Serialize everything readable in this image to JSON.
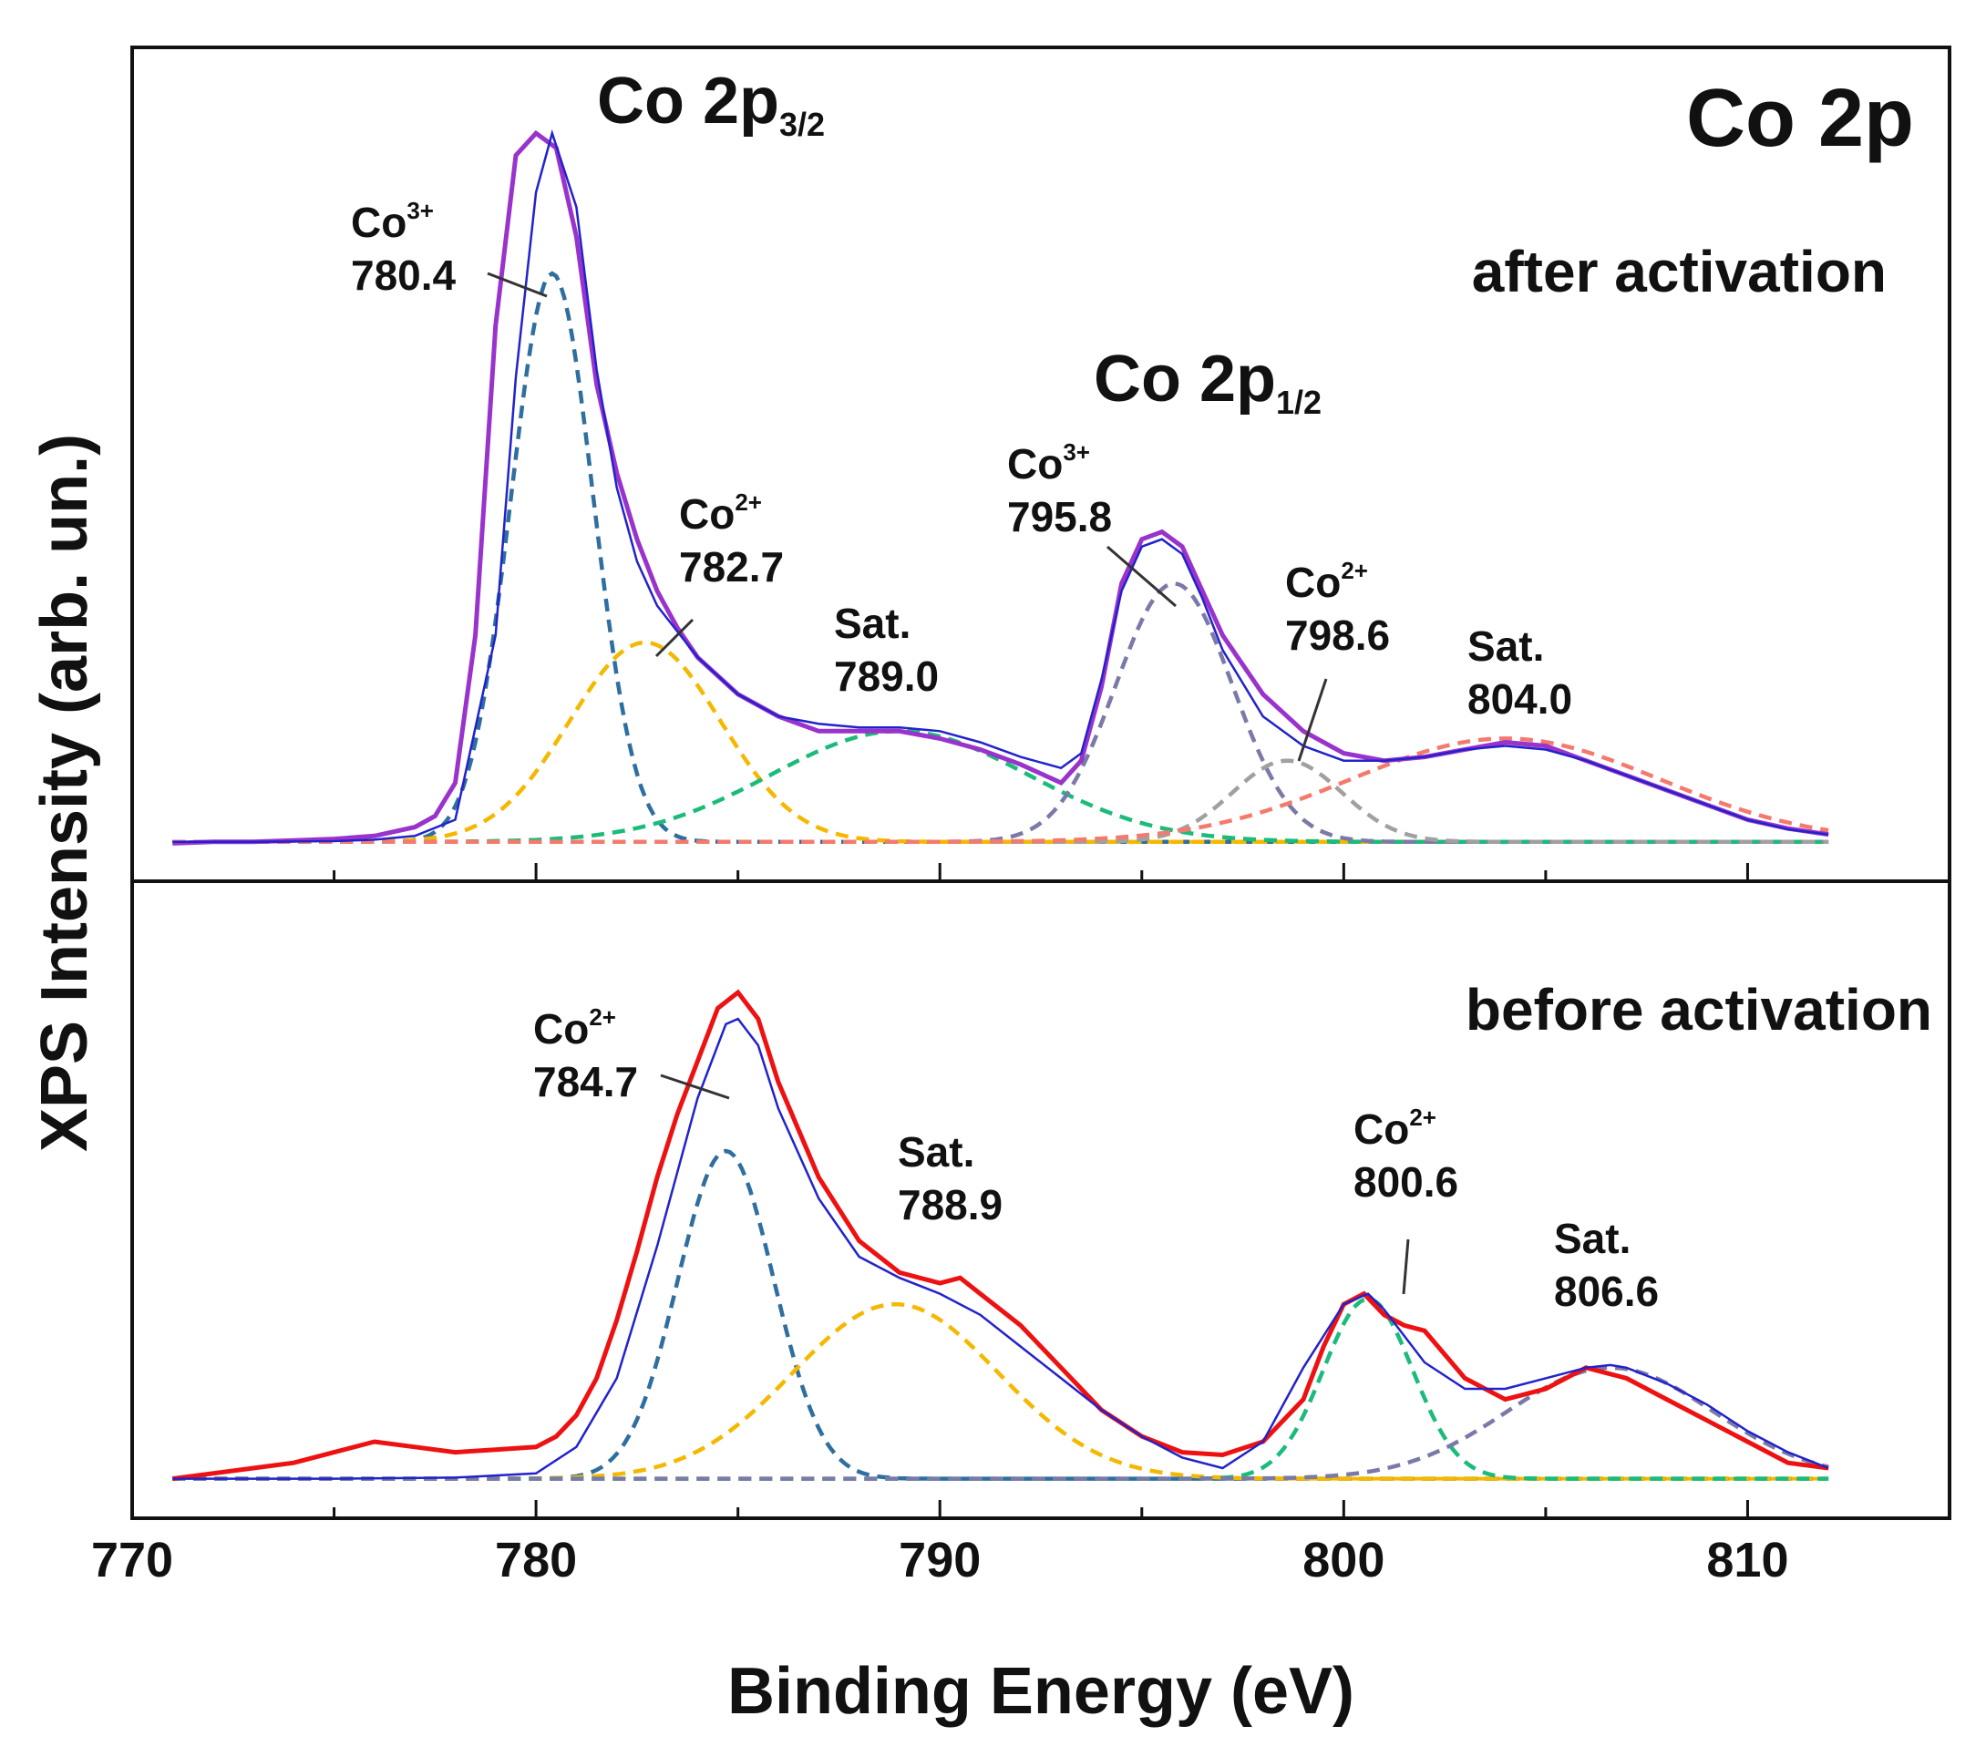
{
  "chart_data": {
    "type": "line",
    "title": "Co 2p",
    "xlabel": "Binding Energy (eV)",
    "ylabel": "XPS Intensity (arb. un.)",
    "xlim": [
      770,
      815
    ],
    "x_ticks": [
      770,
      780,
      790,
      800,
      810
    ],
    "y_ticks": "none",
    "grid": false,
    "legend": "none",
    "colors": {
      "after_exp": "#9933cc",
      "before_exp": "#ee1111",
      "envelope": "#2222cc",
      "co3_main": "#2f6f9f",
      "co2_main": "#f5b800",
      "sat_a": "#1bbb7a",
      "co3_half": "#7a7aa8",
      "co2_half": "#a0a0a0",
      "sat_b": "#f47a6e",
      "annotation_line": "#333333"
    },
    "panels": [
      {
        "id": "after",
        "label": "after activation",
        "group_labels": [
          {
            "main": "Co 2p",
            "sub": "3/2",
            "x": 780.5
          },
          {
            "main": "Co 2p",
            "sub": "1/2",
            "x": 794.0
          }
        ],
        "ylim": [
          0,
          1.0
        ],
        "baseline": 0.02,
        "experimental": {
          "x": [
            771,
            772,
            773,
            774,
            775,
            776,
            777,
            777.5,
            778,
            778.5,
            779,
            779.5,
            780,
            780.5,
            781,
            781.5,
            782,
            782.5,
            783,
            783.5,
            784,
            785,
            786,
            787,
            788,
            789,
            790,
            791,
            792,
            793,
            793.5,
            794,
            794.5,
            795,
            795.5,
            796,
            796.5,
            797,
            798,
            799,
            800,
            801,
            802,
            803,
            804,
            805,
            806,
            807,
            808,
            809,
            810,
            811,
            812
          ],
          "y": [
            0.018,
            0.02,
            0.02,
            0.022,
            0.024,
            0.028,
            0.04,
            0.055,
            0.1,
            0.3,
            0.72,
            0.95,
            0.98,
            0.96,
            0.84,
            0.64,
            0.52,
            0.43,
            0.36,
            0.31,
            0.27,
            0.22,
            0.19,
            0.17,
            0.17,
            0.17,
            0.16,
            0.145,
            0.125,
            0.1,
            0.13,
            0.23,
            0.37,
            0.43,
            0.44,
            0.42,
            0.36,
            0.3,
            0.22,
            0.17,
            0.14,
            0.13,
            0.135,
            0.145,
            0.155,
            0.15,
            0.13,
            0.11,
            0.09,
            0.07,
            0.05,
            0.038,
            0.03
          ]
        },
        "envelope": {
          "x": [
            771,
            773,
            775,
            776,
            777,
            778,
            779,
            779.5,
            780,
            780.4,
            781,
            781.5,
            782,
            782.5,
            783,
            784,
            785,
            786,
            787,
            788,
            789,
            790,
            791,
            792,
            793,
            793.5,
            794,
            794.5,
            795,
            795.5,
            796,
            796.5,
            797,
            798,
            799,
            800,
            801,
            802,
            803,
            804,
            805,
            806,
            807,
            808,
            809,
            810,
            811,
            812
          ],
          "y": [
            0.02,
            0.02,
            0.021,
            0.023,
            0.028,
            0.05,
            0.3,
            0.65,
            0.9,
            0.98,
            0.88,
            0.66,
            0.5,
            0.4,
            0.34,
            0.27,
            0.22,
            0.19,
            0.18,
            0.175,
            0.175,
            0.17,
            0.155,
            0.135,
            0.12,
            0.14,
            0.24,
            0.36,
            0.42,
            0.43,
            0.41,
            0.35,
            0.28,
            0.19,
            0.15,
            0.13,
            0.13,
            0.135,
            0.145,
            0.15,
            0.145,
            0.13,
            0.11,
            0.09,
            0.07,
            0.05,
            0.037,
            0.03
          ]
        },
        "components": [
          {
            "name": "Co3+",
            "center": 780.4,
            "fwhm": 2.4,
            "height": 0.77,
            "color_key": "co3_main"
          },
          {
            "name": "Co2+",
            "center": 782.7,
            "fwhm": 4.4,
            "height": 0.27,
            "color_key": "co2_main"
          },
          {
            "name": "Sat.",
            "center": 789.0,
            "fwhm": 7.5,
            "height": 0.15,
            "color_key": "sat_a"
          },
          {
            "name": "Co3+",
            "center": 795.8,
            "fwhm": 3.4,
            "height": 0.35,
            "color_key": "co3_half"
          },
          {
            "name": "Co2+",
            "center": 798.6,
            "fwhm": 3.2,
            "height": 0.11,
            "color_key": "co2_half"
          },
          {
            "name": "Sat.",
            "center": 804.0,
            "fwhm": 9.0,
            "height": 0.14,
            "color_key": "sat_b"
          }
        ],
        "annotations": [
          {
            "species": "Co",
            "charge": "3+",
            "value": "780.4",
            "x": 780.4
          },
          {
            "species": "Co",
            "charge": "2+",
            "value": "782.7",
            "x": 782.7
          },
          {
            "label": "Sat.",
            "value": "789.0",
            "x": 789.0
          },
          {
            "species": "Co",
            "charge": "3+",
            "value": "795.8",
            "x": 795.8
          },
          {
            "species": "Co",
            "charge": "2+",
            "value": "798.6",
            "x": 798.6
          },
          {
            "label": "Sat.",
            "value": "804.0",
            "x": 804.0
          }
        ]
      },
      {
        "id": "before",
        "label": "before activation",
        "ylim": [
          0,
          1.0
        ],
        "baseline": 0.03,
        "experimental": {
          "x": [
            771,
            772,
            773,
            774,
            775,
            776,
            777,
            778,
            779,
            780,
            780.5,
            781,
            781.5,
            782,
            782.5,
            783,
            783.5,
            784,
            784.5,
            785,
            785.5,
            786,
            787,
            788,
            789,
            790,
            790.5,
            791,
            792,
            793,
            794,
            795,
            796,
            797,
            798,
            799,
            799.5,
            800,
            800.5,
            801,
            801.5,
            802,
            803,
            804,
            805,
            806,
            807,
            808,
            809,
            810,
            811,
            812
          ],
          "y": [
            0.03,
            0.04,
            0.05,
            0.06,
            0.08,
            0.1,
            0.09,
            0.08,
            0.085,
            0.09,
            0.11,
            0.15,
            0.22,
            0.33,
            0.46,
            0.6,
            0.72,
            0.82,
            0.92,
            0.95,
            0.9,
            0.78,
            0.6,
            0.48,
            0.42,
            0.4,
            0.41,
            0.38,
            0.32,
            0.24,
            0.16,
            0.11,
            0.08,
            0.075,
            0.1,
            0.18,
            0.28,
            0.36,
            0.38,
            0.34,
            0.32,
            0.31,
            0.22,
            0.18,
            0.2,
            0.24,
            0.22,
            0.18,
            0.14,
            0.1,
            0.06,
            0.05
          ]
        },
        "envelope": {
          "x": [
            771,
            775,
            778,
            780,
            781,
            782,
            783,
            784,
            784.7,
            785,
            785.5,
            786,
            787,
            788,
            789,
            790,
            791,
            792,
            793,
            794,
            795,
            796,
            797,
            798,
            799,
            800,
            800.6,
            801,
            802,
            803,
            804,
            805,
            806,
            806.6,
            807,
            808,
            809,
            810,
            811,
            812
          ],
          "y": [
            0.03,
            0.03,
            0.032,
            0.04,
            0.09,
            0.22,
            0.47,
            0.75,
            0.89,
            0.9,
            0.85,
            0.73,
            0.56,
            0.45,
            0.41,
            0.38,
            0.34,
            0.28,
            0.22,
            0.16,
            0.11,
            0.07,
            0.05,
            0.1,
            0.24,
            0.36,
            0.38,
            0.35,
            0.25,
            0.2,
            0.2,
            0.22,
            0.24,
            0.245,
            0.24,
            0.21,
            0.17,
            0.12,
            0.08,
            0.05
          ]
        },
        "components": [
          {
            "name": "Co2+",
            "center": 784.7,
            "fwhm": 2.8,
            "height": 0.62,
            "color_key": "co3_main"
          },
          {
            "name": "Sat.",
            "center": 788.9,
            "fwhm": 6.0,
            "height": 0.33,
            "color_key": "co2_main"
          },
          {
            "name": "Co2+",
            "center": 800.6,
            "fwhm": 2.6,
            "height": 0.34,
            "color_key": "sat_a"
          },
          {
            "name": "Sat.",
            "center": 806.6,
            "fwhm": 6.0,
            "height": 0.21,
            "color_key": "co3_half"
          }
        ],
        "annotations": [
          {
            "species": "Co",
            "charge": "2+",
            "value": "784.7",
            "x": 784.7
          },
          {
            "label": "Sat.",
            "value": "788.9",
            "x": 788.9
          },
          {
            "species": "Co",
            "charge": "2+",
            "value": "800.6",
            "x": 800.6
          },
          {
            "label": "Sat.",
            "value": "806.6",
            "x": 806.6
          }
        ]
      }
    ]
  }
}
